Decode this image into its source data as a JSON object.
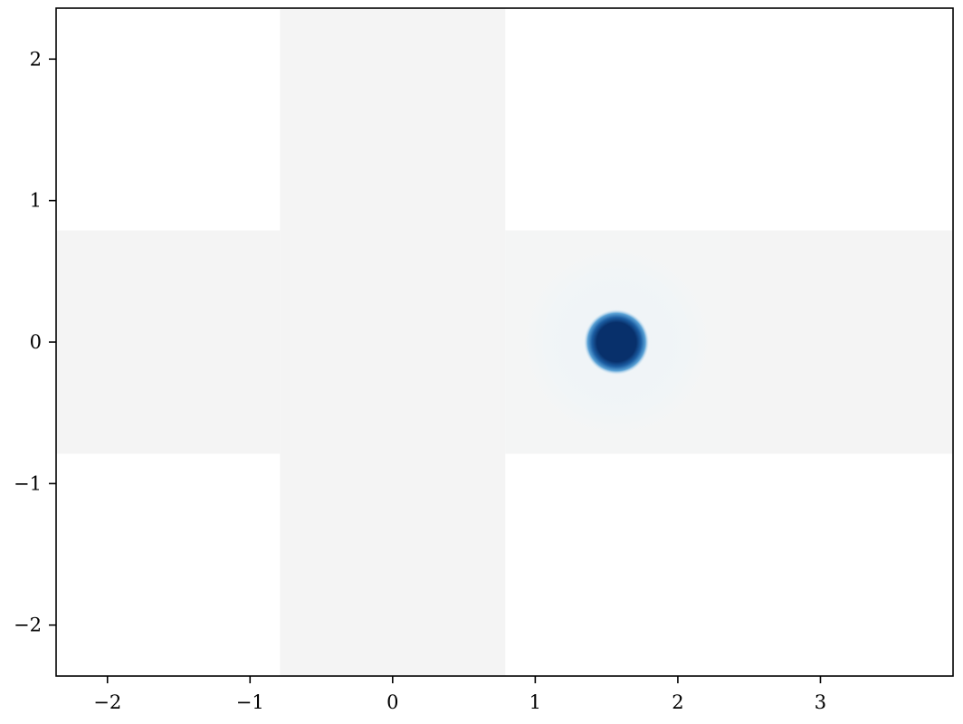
{
  "chart_data": {
    "type": "heatmap",
    "title": "",
    "xlabel": "",
    "ylabel": "",
    "xlim": [
      -2.36,
      3.93
    ],
    "ylim": [
      -2.36,
      2.36
    ],
    "grid": false,
    "legend": "none",
    "colormap": "Blues",
    "xticks": [
      -2,
      -1,
      0,
      1,
      2,
      3
    ],
    "yticks": [
      -2,
      -1,
      0,
      1,
      2
    ],
    "background_color": "#ffffff",
    "regions": [
      {
        "name": "left-arm",
        "x": [
          -2.36,
          -0.79
        ],
        "y": [
          -0.79,
          0.79
        ],
        "color": "#f4f4f4"
      },
      {
        "name": "center-column",
        "x": [
          -0.79,
          0.79
        ],
        "y": [
          -2.36,
          2.36
        ],
        "color": "#f4f4f4"
      },
      {
        "name": "right-cell",
        "x": [
          0.79,
          2.36
        ],
        "y": [
          -0.79,
          0.79
        ],
        "color": "#f4f5f5"
      },
      {
        "name": "far-right-arm",
        "x": [
          2.36,
          3.93
        ],
        "y": [
          -0.79,
          0.79
        ],
        "color": "#f4f4f4"
      }
    ],
    "blobs": [
      {
        "name": "faint-halo",
        "x": 1.57,
        "y": 0.0,
        "radius": 0.72,
        "color": "#f1f5f8"
      },
      {
        "name": "peak",
        "x": 1.57,
        "y": 0.0,
        "radius": 0.17,
        "color": "#08306b",
        "glow_color": "#2f86c3"
      }
    ]
  }
}
